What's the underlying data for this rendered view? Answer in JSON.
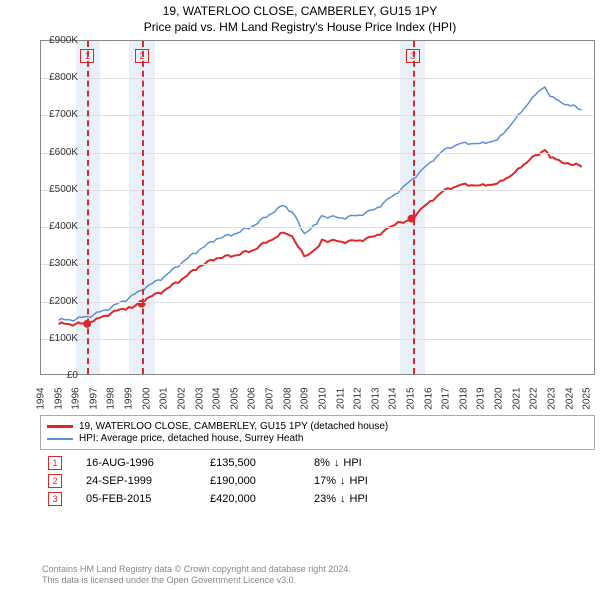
{
  "title_line1": "19, WATERLOO CLOSE, CAMBERLEY, GU15 1PY",
  "title_line2": "Price paid vs. HM Land Registry's House Price Index (HPI)",
  "chart": {
    "type": "line",
    "background_color": "#ffffff",
    "grid_color": "#e0e0e0",
    "border_color": "#888888",
    "x_years": [
      1994,
      1995,
      1996,
      1997,
      1998,
      1999,
      2000,
      2001,
      2002,
      2003,
      2004,
      2005,
      2006,
      2007,
      2008,
      2009,
      2010,
      2011,
      2012,
      2013,
      2014,
      2015,
      2016,
      2017,
      2018,
      2019,
      2020,
      2021,
      2022,
      2023,
      2024,
      2025
    ],
    "xlim": [
      1994,
      2025.5
    ],
    "ylim": [
      0,
      900000
    ],
    "ytick_step": 100000,
    "ytick_labels": [
      "£0",
      "£100K",
      "£200K",
      "£300K",
      "£400K",
      "£500K",
      "£600K",
      "£700K",
      "£800K",
      "£900K"
    ],
    "axis_fontsize": 10,
    "series": [
      {
        "name": "price_paid",
        "label": "19, WATERLOO CLOSE, CAMBERLEY, GU15 1PY (detached house)",
        "color": "#db2828",
        "width": 2,
        "points": {
          "1995.0": 135000,
          "1996.6": 135500,
          "1997.0": 143000,
          "1998.0": 165000,
          "1999.0": 181000,
          "1999.7": 190000,
          "2000.0": 203000,
          "2001.0": 225000,
          "2002.0": 255000,
          "2003.0": 290000,
          "2004.0": 313000,
          "2005.0": 320000,
          "2006.0": 333000,
          "2007.0": 360000,
          "2007.8": 382000,
          "2008.3": 372000,
          "2009.0": 318000,
          "2009.7": 340000,
          "2010.0": 363000,
          "2011.0": 358000,
          "2012.0": 360000,
          "2013.0": 372000,
          "2014.0": 400000,
          "2015.1": 420000,
          "2016.0": 460000,
          "2017.0": 498000,
          "2018.0": 513000,
          "2019.0": 510000,
          "2020.0": 515000,
          "2021.0": 545000,
          "2022.0": 588000,
          "2022.7": 605000,
          "2023.0": 585000,
          "2024.0": 570000,
          "2024.8": 560000
        }
      },
      {
        "name": "hpi",
        "label": "HPI: Average price, detached house, Surrey Heath",
        "color": "#5b8fd6",
        "width": 1.5,
        "points": {
          "1995.0": 145000,
          "1996.0": 148000,
          "1997.0": 160000,
          "1998.0": 180000,
          "1999.0": 205000,
          "2000.0": 235000,
          "2001.0": 262000,
          "2002.0": 300000,
          "2003.0": 335000,
          "2004.0": 365000,
          "2005.0": 378000,
          "2006.0": 398000,
          "2007.0": 430000,
          "2007.8": 455000,
          "2008.3": 438000,
          "2009.0": 380000,
          "2009.7": 405000,
          "2010.0": 428000,
          "2011.0": 422000,
          "2012.0": 428000,
          "2013.0": 445000,
          "2014.0": 480000,
          "2015.0": 520000,
          "2016.0": 565000,
          "2017.0": 608000,
          "2018.0": 625000,
          "2019.0": 623000,
          "2020.0": 633000,
          "2021.0": 688000,
          "2022.0": 748000,
          "2022.7": 776000,
          "2023.0": 750000,
          "2024.0": 728000,
          "2024.8": 715000
        }
      }
    ],
    "sale_markers": [
      {
        "num": "1",
        "year": 1996.63
      },
      {
        "num": "2",
        "year": 1999.73
      },
      {
        "num": "3",
        "year": 2015.1
      }
    ],
    "sale_dots": [
      {
        "year": 1996.63,
        "price": 135500,
        "color": "#db2828"
      },
      {
        "year": 1999.73,
        "price": 190000,
        "color": "#db2828"
      },
      {
        "year": 2015.1,
        "price": 420000,
        "color": "#db2828"
      }
    ],
    "shade_bands": [
      {
        "from": 1996.0,
        "to": 1997.35
      },
      {
        "from": 1999.0,
        "to": 2000.45
      },
      {
        "from": 2014.4,
        "to": 2015.8
      }
    ],
    "shade_color": "rgba(140,170,210,0.18)"
  },
  "transactions": [
    {
      "num": "1",
      "date": "16-AUG-1996",
      "price": "£135,500",
      "diff_pct": "8%",
      "diff_dir": "↓",
      "diff_suffix": "HPI"
    },
    {
      "num": "2",
      "date": "24-SEP-1999",
      "price": "£190,000",
      "diff_pct": "17%",
      "diff_dir": "↓",
      "diff_suffix": "HPI"
    },
    {
      "num": "3",
      "date": "05-FEB-2015",
      "price": "£420,000",
      "diff_pct": "23%",
      "diff_dir": "↓",
      "diff_suffix": "HPI"
    }
  ],
  "attribution_line1": "Contains HM Land Registry data © Crown copyright and database right 2024.",
  "attribution_line2": "This data is licensed under the Open Government Licence v3.0."
}
